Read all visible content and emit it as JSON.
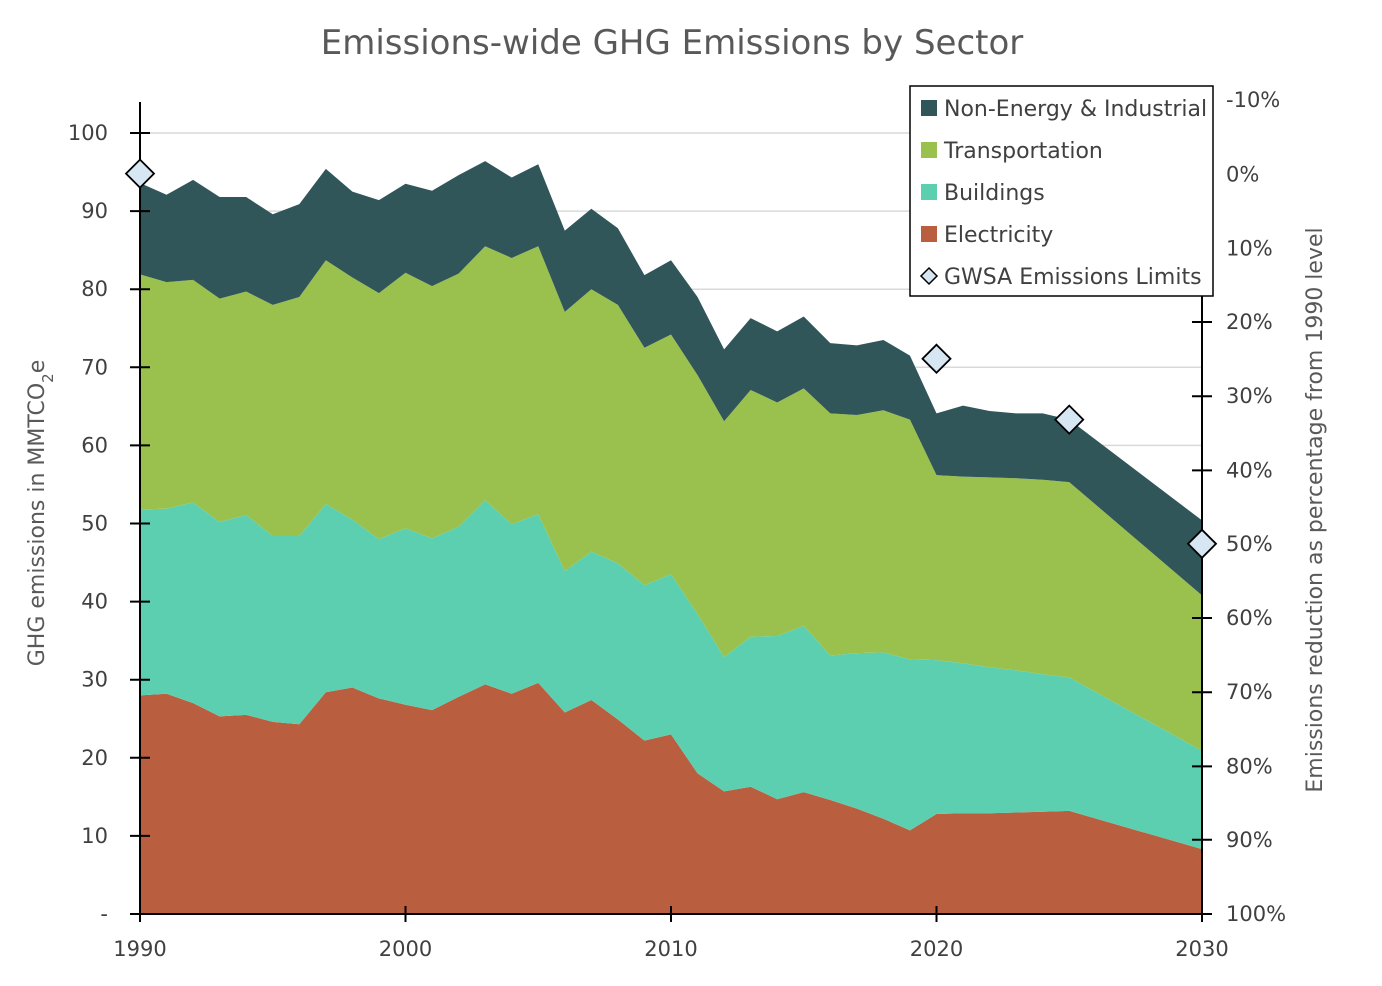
{
  "chart_data": {
    "type": "area",
    "title": "Emissions-wide GHG Emissions by Sector",
    "ylabel": "GHG emissions in MMTCO",
    "ylabel_sub": "2",
    "ylabel_suffix": "e",
    "y2label": "Emissions reduction as percentage from 1990 level",
    "xlim": [
      1990,
      2030
    ],
    "ylim": [
      0,
      100
    ],
    "x_ticks": [
      1990,
      2000,
      2010,
      2020,
      2030
    ],
    "y_ticks": [
      {
        "value": 0,
        "label": "-"
      },
      {
        "value": 10,
        "label": "10"
      },
      {
        "value": 20,
        "label": "20"
      },
      {
        "value": 30,
        "label": "30"
      },
      {
        "value": 40,
        "label": "40"
      },
      {
        "value": 50,
        "label": "50"
      },
      {
        "value": 60,
        "label": "60"
      },
      {
        "value": 70,
        "label": "70"
      },
      {
        "value": 80,
        "label": "80"
      },
      {
        "value": 90,
        "label": "90"
      },
      {
        "value": 100,
        "label": "100"
      }
    ],
    "y2_ticks": [
      {
        "value": 104.2,
        "label": "-10%"
      },
      {
        "value": 94.7,
        "label": "0%"
      },
      {
        "value": 85.2,
        "label": "10%"
      },
      {
        "value": 75.8,
        "label": "20%"
      },
      {
        "value": 66.3,
        "label": "30%"
      },
      {
        "value": 56.8,
        "label": "40%"
      },
      {
        "value": 47.4,
        "label": "50%"
      },
      {
        "value": 37.9,
        "label": "60%"
      },
      {
        "value": 28.4,
        "label": "70%"
      },
      {
        "value": 18.9,
        "label": "80%"
      },
      {
        "value": 9.5,
        "label": "90%"
      },
      {
        "value": 0,
        "label": "100%"
      }
    ],
    "grid": true,
    "legend_position": "top-right",
    "colors": {
      "Electricity": "#b95e3f",
      "Buildings": "#5ccfb0",
      "Transportation": "#9ac14d",
      "Non-Energy & Industrial": "#30565a",
      "GWSA Emissions Limits": "#d6e6f2"
    },
    "x": [
      1990,
      1991,
      1992,
      1993,
      1994,
      1995,
      1996,
      1997,
      1998,
      1999,
      2000,
      2001,
      2002,
      2003,
      2004,
      2005,
      2006,
      2007,
      2008,
      2009,
      2010,
      2011,
      2012,
      2013,
      2014,
      2015,
      2016,
      2017,
      2018,
      2019,
      2020,
      2021,
      2022,
      2023,
      2024,
      2025,
      2030
    ],
    "series": [
      {
        "name": "Electricity",
        "values": [
          28.0,
          28.2,
          27.0,
          25.3,
          25.5,
          24.6,
          24.3,
          28.4,
          29.0,
          27.6,
          26.8,
          26.1,
          27.8,
          29.4,
          28.2,
          29.6,
          25.8,
          27.4,
          24.9,
          22.2,
          23.0,
          18.0,
          15.7,
          16.3,
          14.7,
          15.6,
          14.6,
          13.5,
          12.2,
          10.7,
          12.8,
          12.9,
          12.9,
          13.0,
          13.1,
          13.2,
          8.3
        ]
      },
      {
        "name": "Buildings",
        "values": [
          23.8,
          23.7,
          25.7,
          24.9,
          25.6,
          23.8,
          24.1,
          24.1,
          21.5,
          20.4,
          22.6,
          22.0,
          21.8,
          23.6,
          21.7,
          21.6,
          18.1,
          19.0,
          20.0,
          19.9,
          20.5,
          20.4,
          17.2,
          19.2,
          20.9,
          21.3,
          18.5,
          19.9,
          21.3,
          21.9,
          19.7,
          19.2,
          18.7,
          18.2,
          17.6,
          17.1,
          12.6
        ]
      },
      {
        "name": "Transportation",
        "values": [
          30.1,
          29.0,
          28.5,
          28.6,
          28.6,
          29.6,
          30.6,
          31.2,
          31.0,
          31.5,
          32.7,
          32.3,
          32.4,
          32.5,
          34.1,
          34.3,
          33.2,
          33.6,
          33.1,
          30.4,
          30.7,
          30.6,
          30.2,
          31.6,
          29.9,
          30.4,
          31.0,
          30.5,
          31.0,
          30.7,
          23.7,
          23.9,
          24.3,
          24.6,
          24.9,
          25.0,
          19.9
        ]
      },
      {
        "name": "Non-Energy & Industrial",
        "values": [
          11.7,
          11.2,
          12.8,
          13.0,
          12.1,
          11.6,
          11.9,
          11.7,
          11.0,
          11.9,
          11.4,
          12.2,
          12.6,
          10.9,
          10.3,
          10.5,
          10.4,
          10.3,
          9.8,
          9.3,
          9.5,
          10.0,
          9.2,
          9.2,
          9.1,
          9.2,
          9.0,
          8.9,
          9.0,
          8.2,
          7.9,
          9.1,
          8.5,
          8.3,
          8.5,
          8.0,
          9.6
        ]
      }
    ],
    "limits": {
      "name": "GWSA Emissions Limits",
      "x": [
        1990,
        2020,
        2025,
        2030
      ],
      "values": [
        94.8,
        71.1,
        63.3,
        47.4
      ]
    },
    "legend": [
      "Non-Energy & Industrial",
      "Transportation",
      "Buildings",
      "Electricity",
      "GWSA Emissions Limits"
    ]
  }
}
